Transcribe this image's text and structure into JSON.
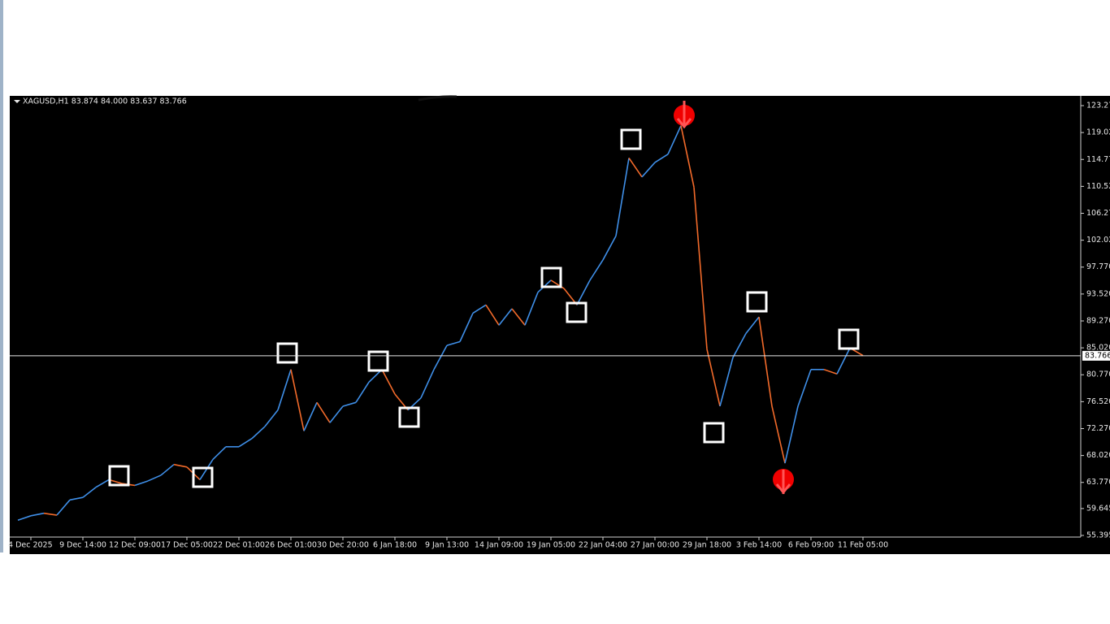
{
  "chart_data": {
    "type": "line",
    "title": "XAGUSD,H1  83.874 84.000 83.637 83.766",
    "categories": [
      null,
      "4 Dec 2025",
      null,
      null,
      null,
      "9 Dec 14:00",
      null,
      null,
      null,
      "12 Dec 09:00",
      null,
      null,
      null,
      "17 Dec 05:00",
      null,
      null,
      null,
      "22 Dec 01:00",
      null,
      null,
      null,
      "26 Dec 01:00",
      null,
      null,
      null,
      "30 Dec 20:00",
      null,
      null,
      null,
      "6 Jan 18:00",
      null,
      null,
      null,
      "9 Jan 13:00",
      null,
      null,
      null,
      "14 Jan 09:00",
      null,
      null,
      null,
      "19 Jan 05:00",
      null,
      null,
      null,
      "22 Jan 04:00",
      null,
      null,
      null,
      "27 Jan 00:00",
      null,
      null,
      null,
      "29 Jan 18:00",
      null,
      null,
      null,
      "3 Feb 14:00",
      null,
      null,
      null,
      "6 Feb 09:00",
      null,
      null,
      null,
      "11 Feb 05:00"
    ],
    "values": [
      57.8,
      58.5,
      58.9,
      58.6,
      61.0,
      61.4,
      63.0,
      64.2,
      63.6,
      63.3,
      64.0,
      64.9,
      66.6,
      66.2,
      64.2,
      67.4,
      69.4,
      69.4,
      70.7,
      72.6,
      75.2,
      81.6,
      71.9,
      76.4,
      73.2,
      75.8,
      76.4,
      79.6,
      81.6,
      77.7,
      75.2,
      77.1,
      81.6,
      85.4,
      86.0,
      90.5,
      91.8,
      88.6,
      91.2,
      88.6,
      93.8,
      95.7,
      94.4,
      91.8,
      95.7,
      98.9,
      102.7,
      115.0,
      112.0,
      114.3,
      115.6,
      120.1,
      110.4,
      84.8,
      75.8,
      83.5,
      87.3,
      89.9,
      75.8,
      66.8,
      75.8,
      81.6,
      81.6,
      80.9,
      85.0,
      83.8
    ],
    "up_color": "#3f8fe8",
    "down_color": "#f26a2a",
    "current_price": 83.766,
    "ylim": [
      55.14,
      124.81
    ],
    "yticks": [
      {
        "value": 123.27,
        "label": "123.270"
      },
      {
        "value": 119.02,
        "label": "119.020"
      },
      {
        "value": 114.77,
        "label": "114.770"
      },
      {
        "value": 110.52,
        "label": "110.520"
      },
      {
        "value": 106.27,
        "label": "106.270"
      },
      {
        "value": 102.02,
        "label": "102.020"
      },
      {
        "value": 97.77,
        "label": "97.770"
      },
      {
        "value": 93.52,
        "label": "93.520"
      },
      {
        "value": 89.27,
        "label": "89.270"
      },
      {
        "value": 85.02,
        "label": "85.020"
      },
      {
        "value": 80.77,
        "label": "80.770"
      },
      {
        "value": 76.52,
        "label": "76.520"
      },
      {
        "value": 72.27,
        "label": "72.270"
      },
      {
        "value": 68.02,
        "label": "68.020"
      },
      {
        "value": 63.77,
        "label": "63.770"
      },
      59.645,
      55.395
    ]
  }
}
